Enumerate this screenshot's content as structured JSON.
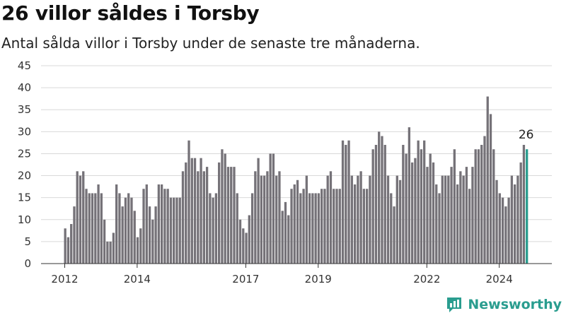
{
  "title": "26 villor såldes i Torsby",
  "subtitle": "Antal sålda villor i Torsby under de senaste tre månaderna.",
  "brand": "Newsworthy",
  "colors": {
    "bar": "#757278",
    "highlight": "#2a9d8f",
    "grid": "#d9d9d9",
    "brand": "#2a9d8f"
  },
  "chart_data": {
    "type": "bar",
    "title": "26 villor såldes i Torsby",
    "subtitle": "Antal sålda villor i Torsby under de senaste tre månaderna.",
    "xlabel": "",
    "ylabel": "",
    "ylim": [
      0,
      45
    ],
    "yticks": [
      0,
      5,
      10,
      15,
      20,
      25,
      30,
      35,
      40,
      45
    ],
    "xticks": [
      "2012",
      "2014",
      "2017",
      "2019",
      "2022",
      "2024"
    ],
    "grid": true,
    "highlight_label": "26",
    "values": [
      8,
      6,
      9,
      13,
      21,
      20,
      21,
      17,
      16,
      16,
      16,
      18,
      16,
      10,
      5,
      5,
      7,
      18,
      16,
      13,
      15,
      16,
      15,
      12,
      6,
      8,
      17,
      18,
      13,
      10,
      13,
      18,
      18,
      17,
      17,
      15,
      15,
      15,
      15,
      21,
      23,
      28,
      24,
      24,
      21,
      24,
      21,
      22,
      16,
      15,
      16,
      23,
      26,
      25,
      22,
      22,
      22,
      16,
      10,
      8,
      7,
      11,
      16,
      21,
      24,
      20,
      20,
      21,
      25,
      25,
      20,
      21,
      12,
      14,
      11,
      17,
      18,
      19,
      16,
      17,
      20,
      16,
      16,
      16,
      16,
      17,
      17,
      20,
      21,
      17,
      17,
      17,
      28,
      27,
      28,
      20,
      18,
      20,
      21,
      17,
      17,
      20,
      26,
      27,
      30,
      29,
      27,
      20,
      16,
      13,
      20,
      19,
      27,
      25,
      31,
      23,
      24,
      28,
      26,
      28,
      22,
      25,
      23,
      18,
      16,
      20,
      20,
      20,
      22,
      26,
      18,
      21,
      20,
      22,
      17,
      22,
      26,
      26,
      27,
      29,
      38,
      34,
      26,
      19,
      16,
      15,
      13,
      15,
      20,
      18,
      20,
      23,
      27,
      26
    ]
  }
}
